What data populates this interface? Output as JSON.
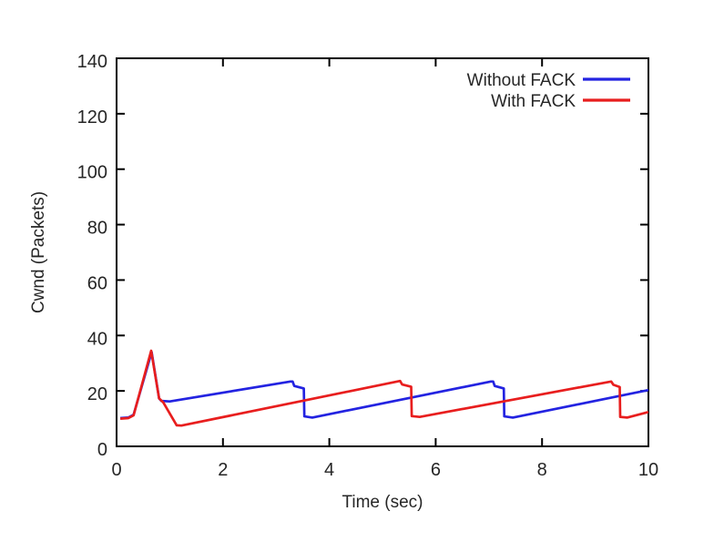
{
  "chart_data": {
    "type": "line",
    "title": "",
    "xlabel": "Time (sec)",
    "ylabel": "Cwnd (Packets)",
    "x_range": [
      0,
      10
    ],
    "y_range": [
      0,
      140
    ],
    "x_ticks": [
      0,
      2,
      4,
      6,
      8,
      10
    ],
    "y_ticks": [
      0,
      20,
      40,
      60,
      80,
      100,
      120,
      140
    ],
    "grid": false,
    "legend_position": "top-right-inside",
    "background_color": "#ffffff",
    "axis_color": "#000000",
    "text_color": "#262626",
    "series": [
      {
        "name": "Without FACK",
        "color": "#2323e1",
        "points": [
          [
            0.07,
            10.2
          ],
          [
            0.22,
            10.4
          ],
          [
            0.32,
            11.4
          ],
          [
            0.66,
            34.0
          ],
          [
            0.8,
            17.3
          ],
          [
            0.84,
            16.4
          ],
          [
            1.0,
            16.2
          ],
          [
            3.27,
            23.4
          ],
          [
            3.31,
            23.4
          ],
          [
            3.34,
            21.8
          ],
          [
            3.52,
            20.9
          ],
          [
            3.53,
            10.8
          ],
          [
            3.68,
            10.4
          ],
          [
            7.04,
            23.4
          ],
          [
            7.08,
            23.4
          ],
          [
            7.11,
            21.8
          ],
          [
            7.28,
            20.9
          ],
          [
            7.29,
            10.8
          ],
          [
            7.45,
            10.4
          ],
          [
            10.0,
            20.3
          ]
        ]
      },
      {
        "name": "With FACK",
        "color": "#e81e1e",
        "points": [
          [
            0.07,
            10.0
          ],
          [
            0.22,
            10.2
          ],
          [
            0.32,
            11.2
          ],
          [
            0.65,
            34.5
          ],
          [
            0.8,
            17.3
          ],
          [
            0.88,
            15.8
          ],
          [
            1.13,
            7.6
          ],
          [
            1.22,
            7.5
          ],
          [
            5.33,
            23.6
          ],
          [
            5.37,
            22.3
          ],
          [
            5.54,
            21.5
          ],
          [
            5.55,
            10.9
          ],
          [
            5.7,
            10.6
          ],
          [
            9.3,
            23.4
          ],
          [
            9.34,
            22.2
          ],
          [
            9.46,
            21.4
          ],
          [
            9.47,
            10.6
          ],
          [
            9.6,
            10.4
          ],
          [
            10.0,
            12.4
          ]
        ]
      }
    ]
  }
}
